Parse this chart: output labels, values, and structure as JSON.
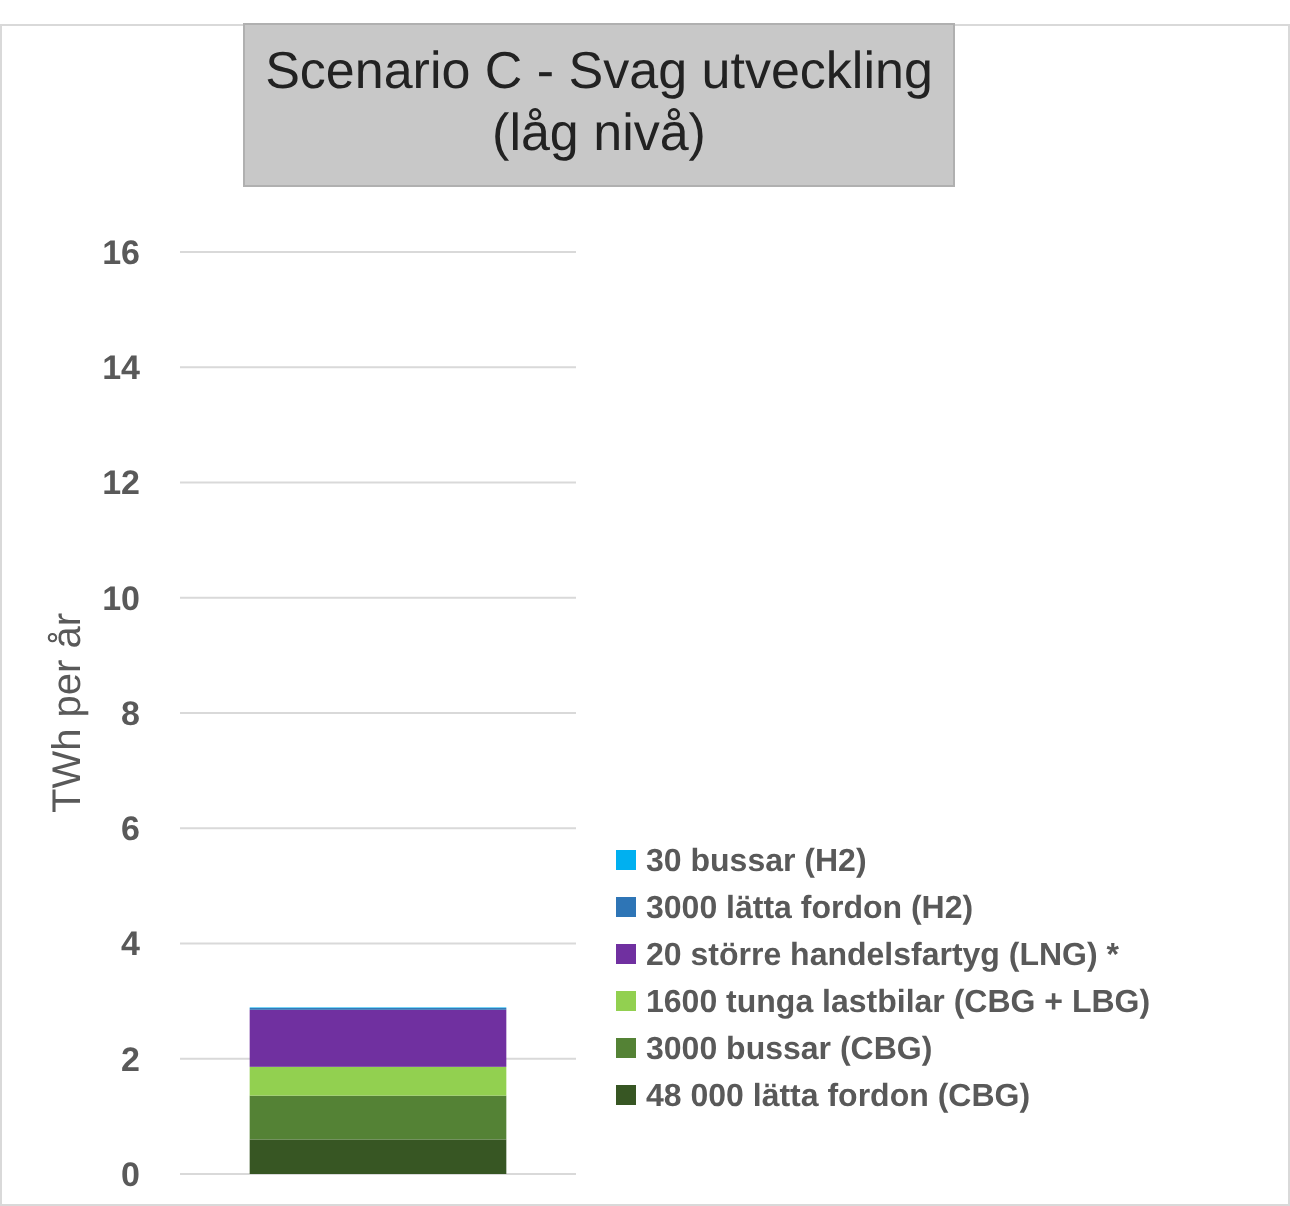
{
  "chart_data": {
    "type": "bar",
    "title": "Scenario C - Svag utveckling\n(låg nivå)",
    "ylabel": "TWh per år",
    "categories": [
      null
    ],
    "stacked": true,
    "ylim": [
      0,
      16
    ],
    "yticks": [
      0,
      2,
      4,
      6,
      8,
      10,
      12,
      14,
      16
    ],
    "grid": "y",
    "legend": "bottom right",
    "series": [
      {
        "name": "48 000 lätta fordon (CBG)",
        "color": "#375623",
        "values": [
          0.6
        ]
      },
      {
        "name": "3000 bussar (CBG)",
        "color": "#548235",
        "values": [
          0.76
        ]
      },
      {
        "name": "1600 tunga lastbilar (CBG + LBG)",
        "color": "#92d050",
        "values": [
          0.5
        ]
      },
      {
        "name": "20 större handelsfartyg (LNG) *",
        "color": "#7030a0",
        "values": [
          0.99
        ]
      },
      {
        "name": "3000 lätta fordon (H2)",
        "color": "#2e75b6",
        "values": [
          0.03
        ]
      },
      {
        "name": "30 bussar (H2)",
        "color": "#00b0f0",
        "values": [
          0.01
        ]
      }
    ]
  }
}
